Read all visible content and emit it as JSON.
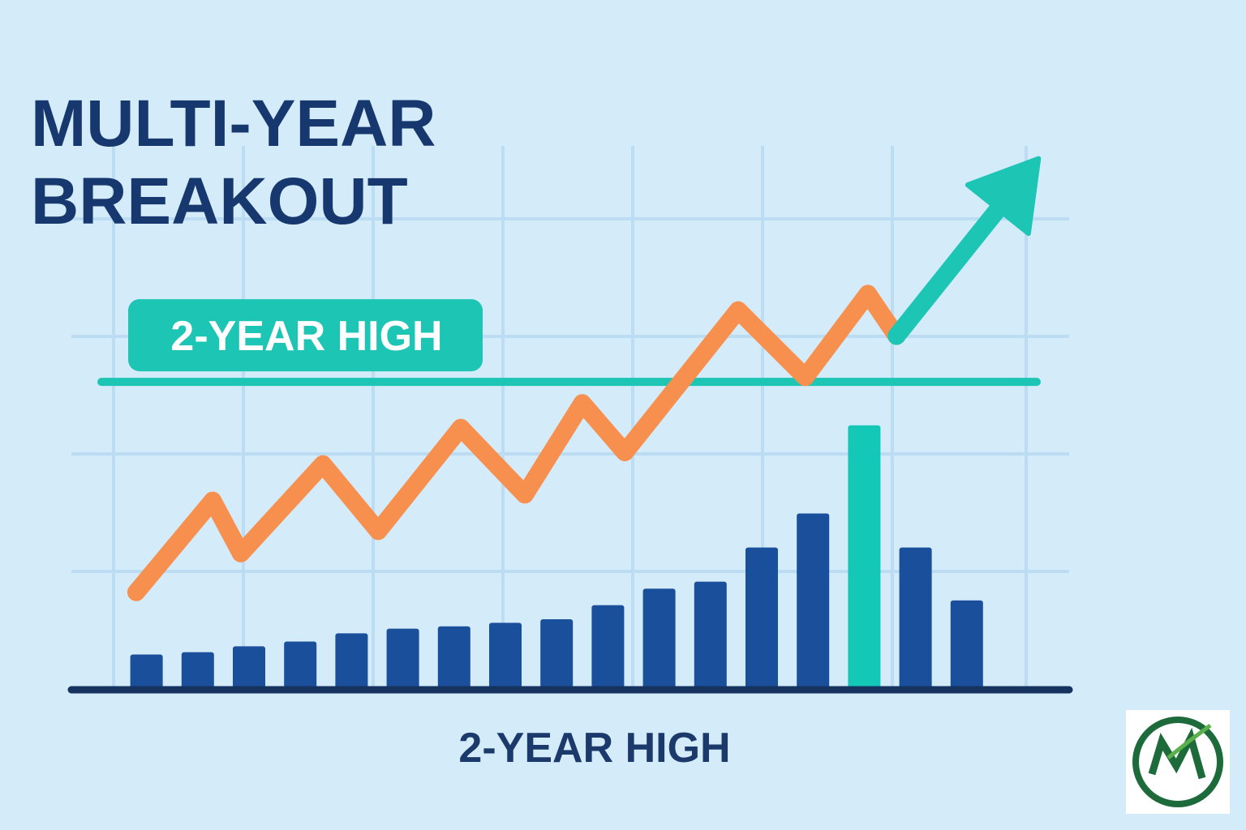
{
  "chart_data": {
    "type": "bar",
    "title": [
      "MULTI-YEAR",
      "BREAKOUT"
    ],
    "x_label": "2-YEAR HIGH",
    "threshold": {
      "value": 2.62,
      "label": "2-YEAR HIGH",
      "color": "#1cc5b4"
    },
    "categories": [
      null,
      null,
      null,
      null,
      null,
      null,
      null,
      null,
      null,
      null,
      null,
      null,
      null,
      null,
      null,
      null,
      null
    ],
    "xlim": [
      0,
      18
    ],
    "ylim": [
      0,
      5
    ],
    "series": [
      {
        "type": "bar",
        "values": [
          0.3,
          0.32,
          0.37,
          0.41,
          0.48,
          0.52,
          0.54,
          0.57,
          0.6,
          0.72,
          0.86,
          0.92,
          1.21,
          1.5,
          2.25,
          1.21,
          0.76
        ],
        "colors": [
          "#1a4f9c",
          "#1a4f9c",
          "#1a4f9c",
          "#1a4f9c",
          "#1a4f9c",
          "#1a4f9c",
          "#1a4f9c",
          "#1a4f9c",
          "#1a4f9c",
          "#1a4f9c",
          "#1a4f9c",
          "#1a4f9c",
          "#1a4f9c",
          "#1a4f9c",
          "#14c8b8",
          "#1a4f9c",
          "#1a4f9c"
        ]
      },
      {
        "type": "line",
        "color": "#f7904e",
        "x": [
          0.3,
          1.79,
          2.34,
          3.94,
          5.02,
          6.63,
          7.88,
          9.0,
          9.83,
          12.04,
          13.35,
          14.57,
          15.13
        ],
        "values": [
          0.83,
          1.61,
          1.16,
          1.92,
          1.35,
          2.23,
          1.66,
          2.44,
          2.02,
          3.23,
          2.66,
          3.37,
          3.01
        ]
      },
      {
        "type": "arrow",
        "color": "#1cc5b4",
        "x": [
          15.13,
          17.9
        ],
        "values": [
          3.01,
          4.52
        ]
      }
    ]
  }
}
